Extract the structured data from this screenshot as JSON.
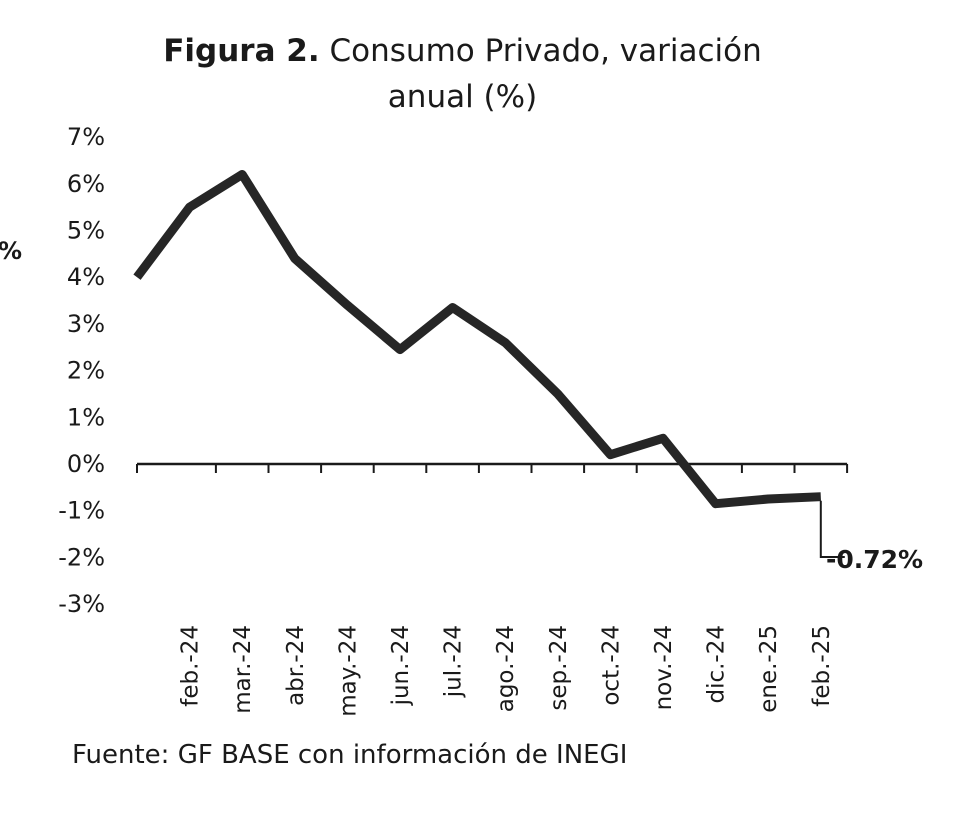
{
  "title": {
    "bold": "Figura 2.",
    "line1": "Consumo Privado, variación",
    "line2": "anual (%)"
  },
  "source": "Fuente: GF BASE con información de INEGI",
  "left_edge_text": "%",
  "chart_data": {
    "type": "line",
    "title": "Figura 2. Consumo Privado, variación anual (%)",
    "xlabel": "",
    "ylabel": "",
    "categories": [
      "feb.-24",
      "mar.-24",
      "abr.-24",
      "may.-24",
      "jun.-24",
      "jul.-24",
      "ago.-24",
      "sep.-24",
      "oct.-24",
      "nov.-24",
      "dic.-24",
      "ene.-25",
      "feb.-25"
    ],
    "series_values": [
      5.5,
      6.2,
      4.4,
      3.4,
      2.45,
      3.35,
      2.6,
      1.5,
      0.2,
      0.55,
      -0.85,
      -0.75,
      -0.7
    ],
    "left_edge_value": 4.0,
    "ylim": [
      -3,
      7
    ],
    "yticks": [
      "7%",
      "6%",
      "5%",
      "4%",
      "3%",
      "2%",
      "1%",
      "0%",
      "-1%",
      "-2%",
      "-3%"
    ],
    "ytick_values": [
      7,
      6,
      5,
      4,
      3,
      2,
      1,
      0,
      -1,
      -2,
      -3
    ],
    "annotation": "-0.72%",
    "grid": false,
    "line_color": "#262626"
  }
}
